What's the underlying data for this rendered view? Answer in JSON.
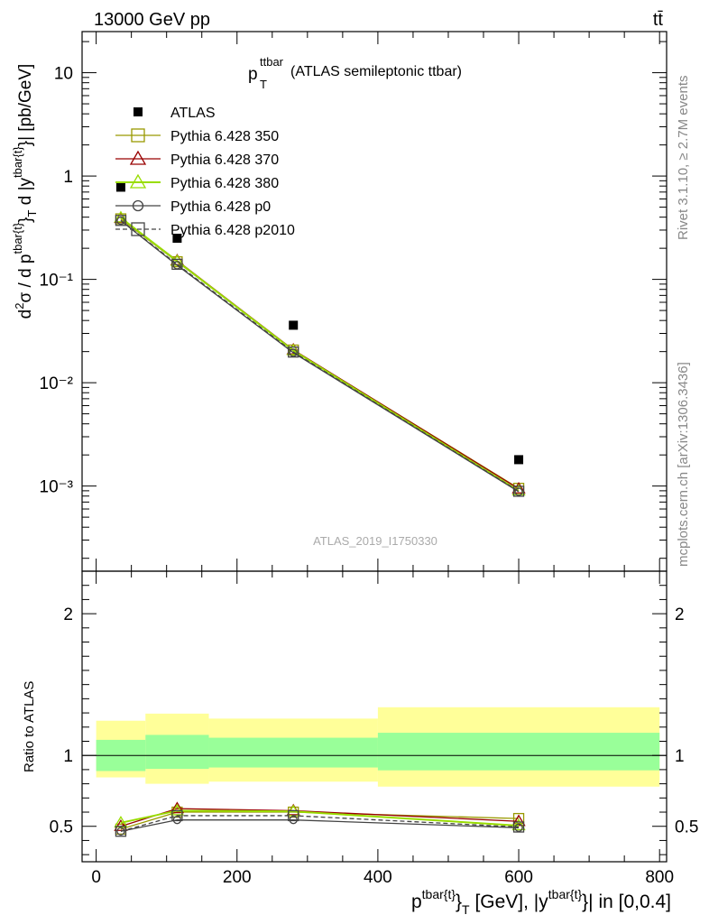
{
  "header": {
    "left": "13000 GeV pp",
    "right": "tt̄"
  },
  "side_labels": {
    "rivet": "Rivet 3.1.10, ≥ 2.7M events",
    "mcplots": "mcplots.cern.ch [arXiv:1306.3436]"
  },
  "watermark": "ATLAS_2019_I1750330",
  "main_title": {
    "p": "p",
    "sup": "ttbar",
    "sub": "T",
    "rest": " (ATLAS semileptonic ttbar)"
  },
  "main_ylabel": "d²σ / d p^{tbar{t}}_T d |y^{tbar{t}}| [pb/GeV]",
  "ratio_ylabel": "Ratio to ATLAS",
  "xlabel": "p^{tbar{t}}_T [GeV], |y^{tbar{t}}| in [0,0.4]",
  "x_ticks": [
    "0",
    "200",
    "400",
    "600",
    "800"
  ],
  "main_y_ticks": [
    "10⁻³",
    "10⁻²",
    "10⁻¹",
    "1",
    "10"
  ],
  "ratio_y_ticks": [
    "0.5",
    "1",
    "2"
  ],
  "legend_labels": [
    "ATLAS",
    "Pythia 6.428 350",
    "Pythia 6.428 370",
    "Pythia 6.428 380",
    "Pythia 6.428 p0",
    "Pythia 6.428 p2010"
  ],
  "colors": {
    "data": "#000000",
    "p350": "#999900",
    "p370": "#990000",
    "p380": "#99dd00",
    "p0": "#444444",
    "p2010": "#444444",
    "band_inner": "#99ff99",
    "band_outer": "#ffff99"
  },
  "chart_data": {
    "type": "line",
    "x_scale": "linear",
    "main_y_scale": "log",
    "xlim": [
      -20,
      810
    ],
    "main_ylim": [
      0.00015,
      25
    ],
    "ratio_ylim": [
      0.25,
      2.3
    ],
    "x_bin_edges": [
      0,
      70,
      160,
      400,
      800
    ],
    "data": {
      "name": "ATLAS",
      "x": [
        35,
        115,
        280,
        600
      ],
      "y": [
        0.78,
        0.25,
        0.036,
        0.0018
      ],
      "band_inner": [
        [
          0.89,
          1.11
        ],
        [
          0.905,
          1.145
        ],
        [
          0.915,
          1.125
        ],
        [
          0.895,
          1.16
        ]
      ],
      "band_outer": [
        [
          0.845,
          1.245
        ],
        [
          0.8,
          1.295
        ],
        [
          0.815,
          1.26
        ],
        [
          0.78,
          1.34
        ]
      ]
    },
    "series": [
      {
        "name": "Pythia 6.428 350",
        "marker": "square-open",
        "style": "solid",
        "x": [
          35,
          115,
          280,
          600
        ],
        "y": [
          0.385,
          0.148,
          0.0207,
          0.00095
        ],
        "ratio": [
          0.48,
          0.6,
          0.6,
          0.555
        ]
      },
      {
        "name": "Pythia 6.428 370",
        "marker": "triangle-open",
        "style": "solid",
        "x": [
          35,
          115,
          280,
          600
        ],
        "y": [
          0.39,
          0.152,
          0.0208,
          0.00094
        ],
        "ratio": [
          0.5,
          0.625,
          0.61,
          0.535
        ]
      },
      {
        "name": "Pythia 6.428 380",
        "marker": "triangle-open",
        "style": "solid",
        "x": [
          35,
          115,
          280,
          600
        ],
        "y": [
          0.395,
          0.15,
          0.0205,
          0.0009
        ],
        "ratio": [
          0.525,
          0.61,
          0.605,
          0.505
        ]
      },
      {
        "name": "Pythia 6.428 p0",
        "marker": "circle-open",
        "style": "solid",
        "x": [
          35,
          115,
          280,
          600
        ],
        "y": [
          0.37,
          0.137,
          0.0195,
          0.00088
        ],
        "ratio": [
          0.465,
          0.545,
          0.545,
          0.49
        ]
      },
      {
        "name": "Pythia 6.428 p2010",
        "marker": "square-open",
        "style": "dashed",
        "x": [
          35,
          115,
          280,
          600
        ],
        "y": [
          0.372,
          0.14,
          0.0198,
          0.00089
        ],
        "ratio": [
          0.465,
          0.575,
          0.575,
          0.495
        ]
      }
    ]
  }
}
